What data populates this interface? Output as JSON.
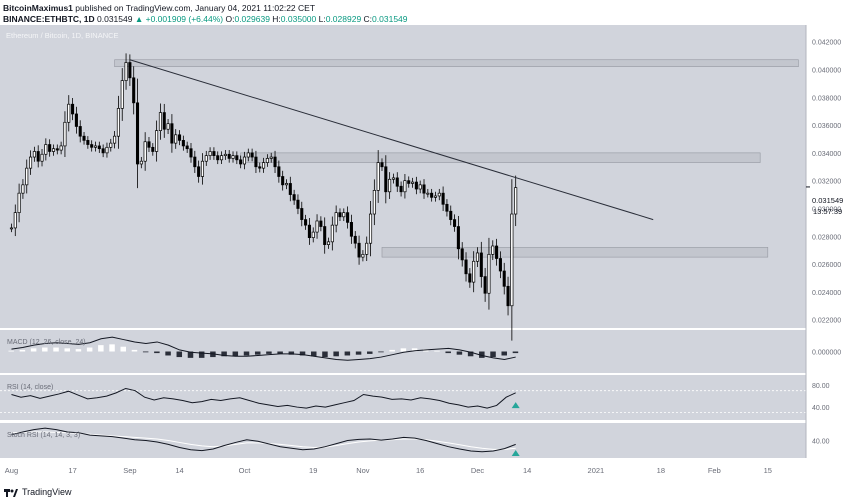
{
  "header": {
    "author": "BitcoinMaximus1",
    "published_text": "published on TradingView.com, January 04, 2021 11:02:22 CET",
    "symbol": "BINANCE:ETHBTC, 1D",
    "last_price": "0.031549",
    "change": "▲ +0.001909 (+6.44%)",
    "o_label": "O:",
    "o_value": "0.029639",
    "h_label": "H:",
    "h_value": "0.035000",
    "l_label": "L:",
    "l_value": "0.028929",
    "c_label": "C:",
    "c_value": "0.031549"
  },
  "footer": {
    "brand": "TradingView"
  },
  "colors": {
    "panel_bg": "#d1d4dc",
    "candle": "#000000",
    "zone_fill": "#c3c6ce",
    "signal_arrow": "#26a69a"
  },
  "chart_data": {
    "type": "candlestick",
    "title": "Ethereum / Bitcoin, 1D, BINANCE",
    "currency": "BTC",
    "y_ticks": [
      "0.042000",
      "0.040000",
      "0.038000",
      "0.036000",
      "0.034000",
      "0.032000",
      "0.030000",
      "0.028000",
      "0.026000",
      "0.024000",
      "0.022000"
    ],
    "last_price_label": "0.031549",
    "countdown_label": "13:57:39",
    "ylim": [
      0.0214,
      0.0432
    ],
    "x_ticks": [
      {
        "label": "Aug",
        "day": 0
      },
      {
        "label": "17",
        "day": 16
      },
      {
        "label": "Sep",
        "day": 31
      },
      {
        "label": "14",
        "day": 44
      },
      {
        "label": "Oct",
        "day": 61
      },
      {
        "label": "19",
        "day": 79
      },
      {
        "label": "Nov",
        "day": 92
      },
      {
        "label": "16",
        "day": 107
      },
      {
        "label": "Dec",
        "day": 122
      },
      {
        "label": "14",
        "day": 135
      },
      {
        "label": "2021",
        "day": 153
      },
      {
        "label": "18",
        "day": 170
      },
      {
        "label": "Feb",
        "day": 184
      },
      {
        "label": "15",
        "day": 198
      }
    ],
    "x_range_days": [
      -3,
      208
    ],
    "trendline": {
      "from": {
        "day": 31,
        "price": 0.0407
      },
      "to": {
        "day": 168,
        "price": 0.0292
      }
    },
    "zones": [
      {
        "day_from": 27,
        "day_to": 206,
        "price_low": 0.0402,
        "price_high": 0.0407
      },
      {
        "day_from": 60,
        "day_to": 196,
        "price_low": 0.0333,
        "price_high": 0.034
      },
      {
        "day_from": 97,
        "day_to": 198,
        "price_low": 0.0265,
        "price_high": 0.0272
      }
    ],
    "candles_close": [
      0.0286,
      0.0297,
      0.0311,
      0.0317,
      0.0329,
      0.0337,
      0.0341,
      0.0334,
      0.0339,
      0.0346,
      0.0341,
      0.0343,
      0.0342,
      0.0345,
      0.0362,
      0.0375,
      0.0368,
      0.0359,
      0.0352,
      0.0349,
      0.0346,
      0.0344,
      0.0345,
      0.0343,
      0.034,
      0.0344,
      0.0347,
      0.0352,
      0.0372,
      0.0392,
      0.0405,
      0.0394,
      0.0376,
      0.0332,
      0.0334,
      0.0348,
      0.0344,
      0.0341,
      0.0356,
      0.0369,
      0.0357,
      0.0361,
      0.0347,
      0.0353,
      0.0349,
      0.0345,
      0.0343,
      0.0337,
      0.033,
      0.0323,
      0.0334,
      0.0338,
      0.0341,
      0.0338,
      0.0335,
      0.0338,
      0.0339,
      0.0336,
      0.0338,
      0.0335,
      0.0332,
      0.0337,
      0.034,
      0.0337,
      0.033,
      0.0329,
      0.0333,
      0.0336,
      0.0337,
      0.033,
      0.0323,
      0.0317,
      0.0318,
      0.031,
      0.0306,
      0.03,
      0.0292,
      0.0288,
      0.0279,
      0.0283,
      0.0291,
      0.0287,
      0.0274,
      0.0276,
      0.0288,
      0.0297,
      0.0294,
      0.0297,
      0.029,
      0.028,
      0.0275,
      0.0265,
      0.0267,
      0.0275,
      0.0296,
      0.0313,
      0.0333,
      0.033,
      0.0312,
      0.0321,
      0.0322,
      0.0316,
      0.0312,
      0.032,
      0.0318,
      0.0319,
      0.0314,
      0.0317,
      0.0311,
      0.0311,
      0.0308,
      0.0309,
      0.0311,
      0.0303,
      0.0298,
      0.0292,
      0.0287,
      0.0271,
      0.0263,
      0.0253,
      0.0247,
      0.0262,
      0.0268,
      0.0251,
      0.0239,
      0.0267,
      0.0273,
      0.0264,
      0.0255,
      0.0244,
      0.023,
      0.0296,
      0.0315
    ],
    "macd": {
      "label": "MACD (12, 26, close, 24)",
      "y_tick": "0.000000",
      "line": [
        0.3,
        0.5,
        0.8,
        1.0,
        1.1,
        1.0,
        0.9,
        1.1,
        1.6,
        1.8,
        1.5,
        1.2,
        1.0,
        1.2,
        0.8,
        0.2,
        -0.1,
        -0.2,
        -0.3,
        -0.5,
        -0.6,
        -0.6,
        -0.5,
        -0.4,
        -0.3,
        -0.3,
        -0.4,
        -0.6,
        -0.8,
        -1.0,
        -1.1,
        -1.0,
        -0.9,
        -0.7,
        -0.4,
        -0.1,
        0.1,
        0.2,
        0.3,
        0.4,
        0.2,
        -0.1,
        -0.5,
        -0.8,
        -1.0,
        -0.7
      ],
      "hist": [
        0.1,
        0.2,
        0.4,
        0.5,
        0.5,
        0.4,
        0.3,
        0.5,
        0.8,
        0.9,
        0.6,
        0.2,
        -0.1,
        -0.2,
        -0.5,
        -0.7,
        -0.8,
        -0.8,
        -0.7,
        -0.6,
        -0.6,
        -0.5,
        -0.4,
        -0.3,
        -0.3,
        -0.4,
        -0.5,
        -0.6,
        -0.7,
        -0.6,
        -0.5,
        -0.4,
        -0.3,
        -0.1,
        0.2,
        0.4,
        0.4,
        0.3,
        0.1,
        -0.2,
        -0.4,
        -0.6,
        -0.8,
        -0.7,
        -0.5,
        -0.2
      ]
    },
    "rsi": {
      "label": "RSI (14, close)",
      "y_ticks": [
        "80.00",
        "40.00"
      ],
      "values": [
        63,
        58,
        61,
        56,
        60,
        64,
        69,
        62,
        55,
        57,
        60,
        66,
        74,
        70,
        58,
        53,
        57,
        55,
        52,
        48,
        50,
        54,
        52,
        55,
        57,
        52,
        47,
        44,
        41,
        43,
        40,
        38,
        42,
        40,
        44,
        48,
        52,
        63,
        60,
        58,
        54,
        55,
        53,
        57,
        55,
        52,
        47,
        44,
        40,
        42,
        38,
        43,
        58,
        66
      ]
    },
    "stoch_rsi": {
      "label": "Stoch RSI (14, 14, 3, 3)",
      "y_tick": "40.00",
      "k": [
        55,
        62,
        68,
        72,
        68,
        62,
        60,
        54,
        52,
        50,
        46,
        42,
        40,
        36,
        30,
        22,
        16,
        14,
        18,
        27,
        35,
        42,
        38,
        31,
        24,
        20,
        16,
        18,
        24,
        32,
        40,
        43,
        44,
        41,
        44,
        48,
        46,
        40,
        32,
        24,
        18,
        13,
        11,
        13,
        19,
        30
      ],
      "d": [
        60,
        61,
        62,
        62,
        61,
        60,
        58,
        56,
        54,
        52,
        50,
        48,
        46,
        44,
        40,
        35,
        30,
        26,
        24,
        26,
        30,
        34,
        34,
        32,
        30,
        27,
        24,
        22,
        23,
        27,
        32,
        36,
        39,
        41,
        42,
        44,
        44,
        42,
        38,
        34,
        29,
        24,
        20,
        17,
        17,
        20
      ]
    }
  }
}
